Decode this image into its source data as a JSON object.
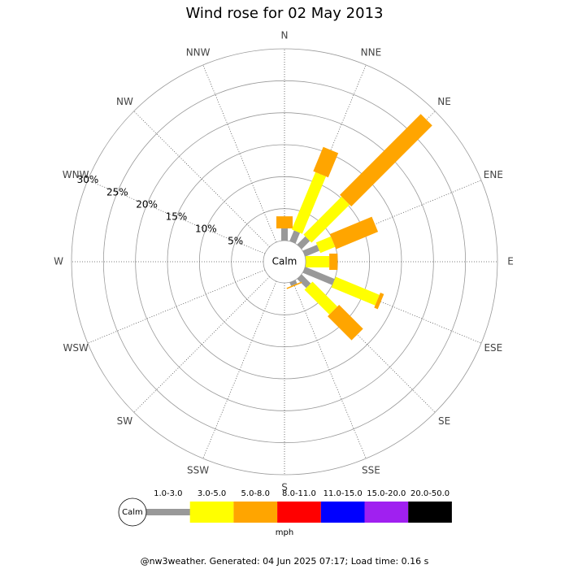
{
  "chart_data": {
    "type": "windrose",
    "title": "Wind rose for 02 May 2013",
    "directions": [
      "N",
      "NNE",
      "NE",
      "ENE",
      "E",
      "ESE",
      "SE",
      "SSE",
      "S",
      "SSW",
      "SW",
      "WSW",
      "W",
      "WNW",
      "NW",
      "NNW"
    ],
    "calm_label": "Calm",
    "rlim": [
      0,
      30
    ],
    "rticks": [
      {
        "value": 5,
        "label": "5%"
      },
      {
        "value": 10,
        "label": "10%"
      },
      {
        "value": 15,
        "label": "15%"
      },
      {
        "value": 20,
        "label": "20%"
      },
      {
        "value": 25,
        "label": "25%"
      },
      {
        "value": 30,
        "label": "30%"
      }
    ],
    "series": [
      {
        "name": "1.0-3.0",
        "color": "#999999",
        "values": [
          1.9,
          1.8,
          1.8,
          2.4,
          0,
          5.0,
          2.0,
          0.6,
          0,
          0,
          0,
          0,
          0,
          0,
          0,
          0
        ]
      },
      {
        "name": "3.0-5.0",
        "color": "#ffff00",
        "values": [
          0,
          9.7,
          8.4,
          2.5,
          3.7,
          7.4,
          5.5,
          0,
          0,
          0,
          0,
          0,
          0,
          0,
          0,
          0
        ]
      },
      {
        "name": "5.0-8.0",
        "color": "#ffa500",
        "values": [
          1.9,
          4.1,
          17.9,
          7.1,
          1.3,
          0.6,
          5.3,
          0.2,
          0,
          0,
          0,
          0,
          0,
          0,
          0,
          0
        ]
      },
      {
        "name": "8.0-11.0",
        "color": "#ff0000",
        "values": [
          0,
          0,
          0,
          0,
          0,
          0,
          0,
          0,
          0,
          0,
          0,
          0,
          0,
          0,
          0,
          0
        ]
      },
      {
        "name": "11.0-15.0",
        "color": "#0000ff",
        "values": [
          0,
          0,
          0,
          0,
          0,
          0,
          0,
          0,
          0,
          0,
          0,
          0,
          0,
          0,
          0,
          0
        ]
      },
      {
        "name": "15.0-20.0",
        "color": "#a020f0",
        "values": [
          0,
          0,
          0,
          0,
          0,
          0,
          0,
          0,
          0,
          0,
          0,
          0,
          0,
          0,
          0,
          0
        ]
      },
      {
        "name": "20.0-50.0",
        "color": "#000000",
        "values": [
          0,
          0,
          0,
          0,
          0,
          0,
          0,
          0,
          0,
          0,
          0,
          0,
          0,
          0,
          0,
          0
        ]
      }
    ],
    "unit": "mph",
    "footer": "@nw3weather. Generated: 04 Jun 2025 07:17; Load time: 0.16 s"
  }
}
